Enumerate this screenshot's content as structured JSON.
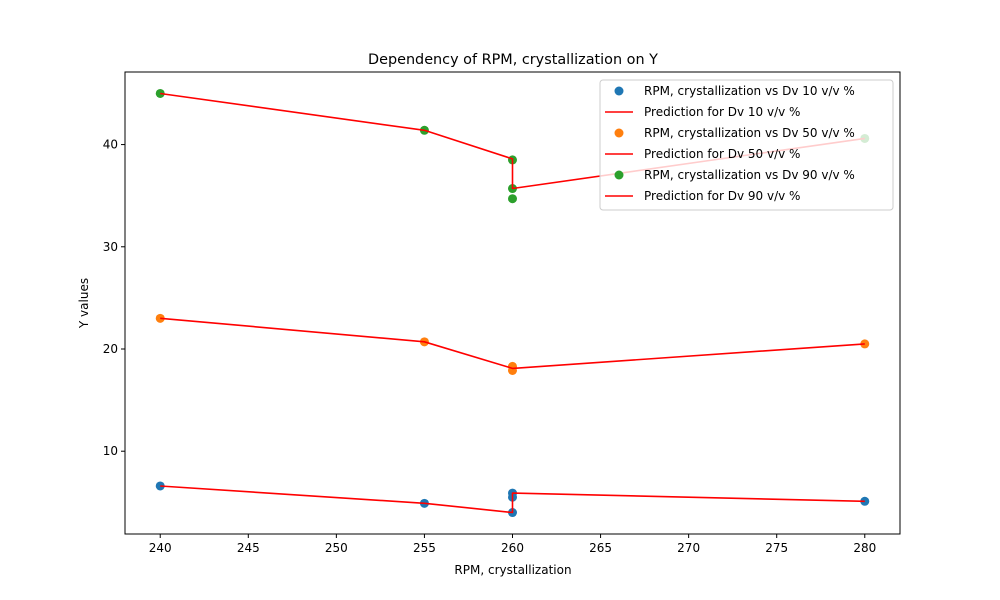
{
  "chart_data": {
    "type": "scatter",
    "title": "Dependency of RPM, crystallization on Y",
    "xlabel": "RPM, crystallization",
    "ylabel": "Y values",
    "xlim": [
      238,
      282
    ],
    "ylim": [
      1.9,
      47.1
    ],
    "xticks": [
      240,
      245,
      250,
      255,
      260,
      265,
      270,
      275,
      280
    ],
    "yticks": [
      10,
      20,
      30,
      40
    ],
    "legend_position": "top-right",
    "colors": {
      "scatter_1": "#1f77b4",
      "scatter_2": "#ff7f0e",
      "scatter_3": "#2ca02c",
      "prediction": "#ff0000"
    },
    "scatter_series": [
      {
        "name": "RPM, crystallization vs Dv 10 v/v %",
        "color": "#1f77b4",
        "points": [
          [
            240,
            6.6
          ],
          [
            255,
            4.9
          ],
          [
            260,
            5.9
          ],
          [
            260,
            5.5
          ],
          [
            260,
            4.0
          ],
          [
            280,
            5.1
          ]
        ]
      },
      {
        "name": "RPM, crystallization vs Dv 50 v/v %",
        "color": "#ff7f0e",
        "points": [
          [
            240,
            23.0
          ],
          [
            255,
            20.7
          ],
          [
            260,
            18.3
          ],
          [
            260,
            17.9
          ],
          [
            280,
            20.5
          ]
        ]
      },
      {
        "name": "RPM, crystallization vs Dv 90 v/v %",
        "color": "#2ca02c",
        "points": [
          [
            240,
            45.0
          ],
          [
            255,
            41.4
          ],
          [
            260,
            38.5
          ],
          [
            260,
            35.7
          ],
          [
            260,
            34.7
          ],
          [
            280,
            40.6
          ]
        ]
      }
    ],
    "prediction_series": [
      {
        "name": "Prediction for Dv 10 v/v %",
        "color": "#ff0000",
        "points": [
          [
            240,
            6.6
          ],
          [
            255,
            4.9
          ],
          [
            260,
            4.0
          ],
          [
            260,
            5.9
          ],
          [
            280,
            5.1
          ]
        ]
      },
      {
        "name": "Prediction for Dv 50 v/v %",
        "color": "#ff0000",
        "points": [
          [
            240,
            23.0
          ],
          [
            255,
            20.7
          ],
          [
            260,
            18.1
          ],
          [
            280,
            20.5
          ]
        ]
      },
      {
        "name": "Prediction for Dv 90 v/v %",
        "color": "#ff0000",
        "points": [
          [
            240,
            45.0
          ],
          [
            255,
            41.4
          ],
          [
            260,
            38.6
          ],
          [
            260,
            35.7
          ],
          [
            280,
            40.6
          ]
        ]
      }
    ],
    "legend": [
      "RPM, crystallization vs Dv 10 v/v %",
      "Prediction for Dv 10 v/v %",
      "RPM, crystallization vs Dv 50 v/v %",
      "Prediction for Dv 50 v/v %",
      "RPM, crystallization vs Dv 90 v/v %",
      "Prediction for Dv 90 v/v %"
    ]
  }
}
